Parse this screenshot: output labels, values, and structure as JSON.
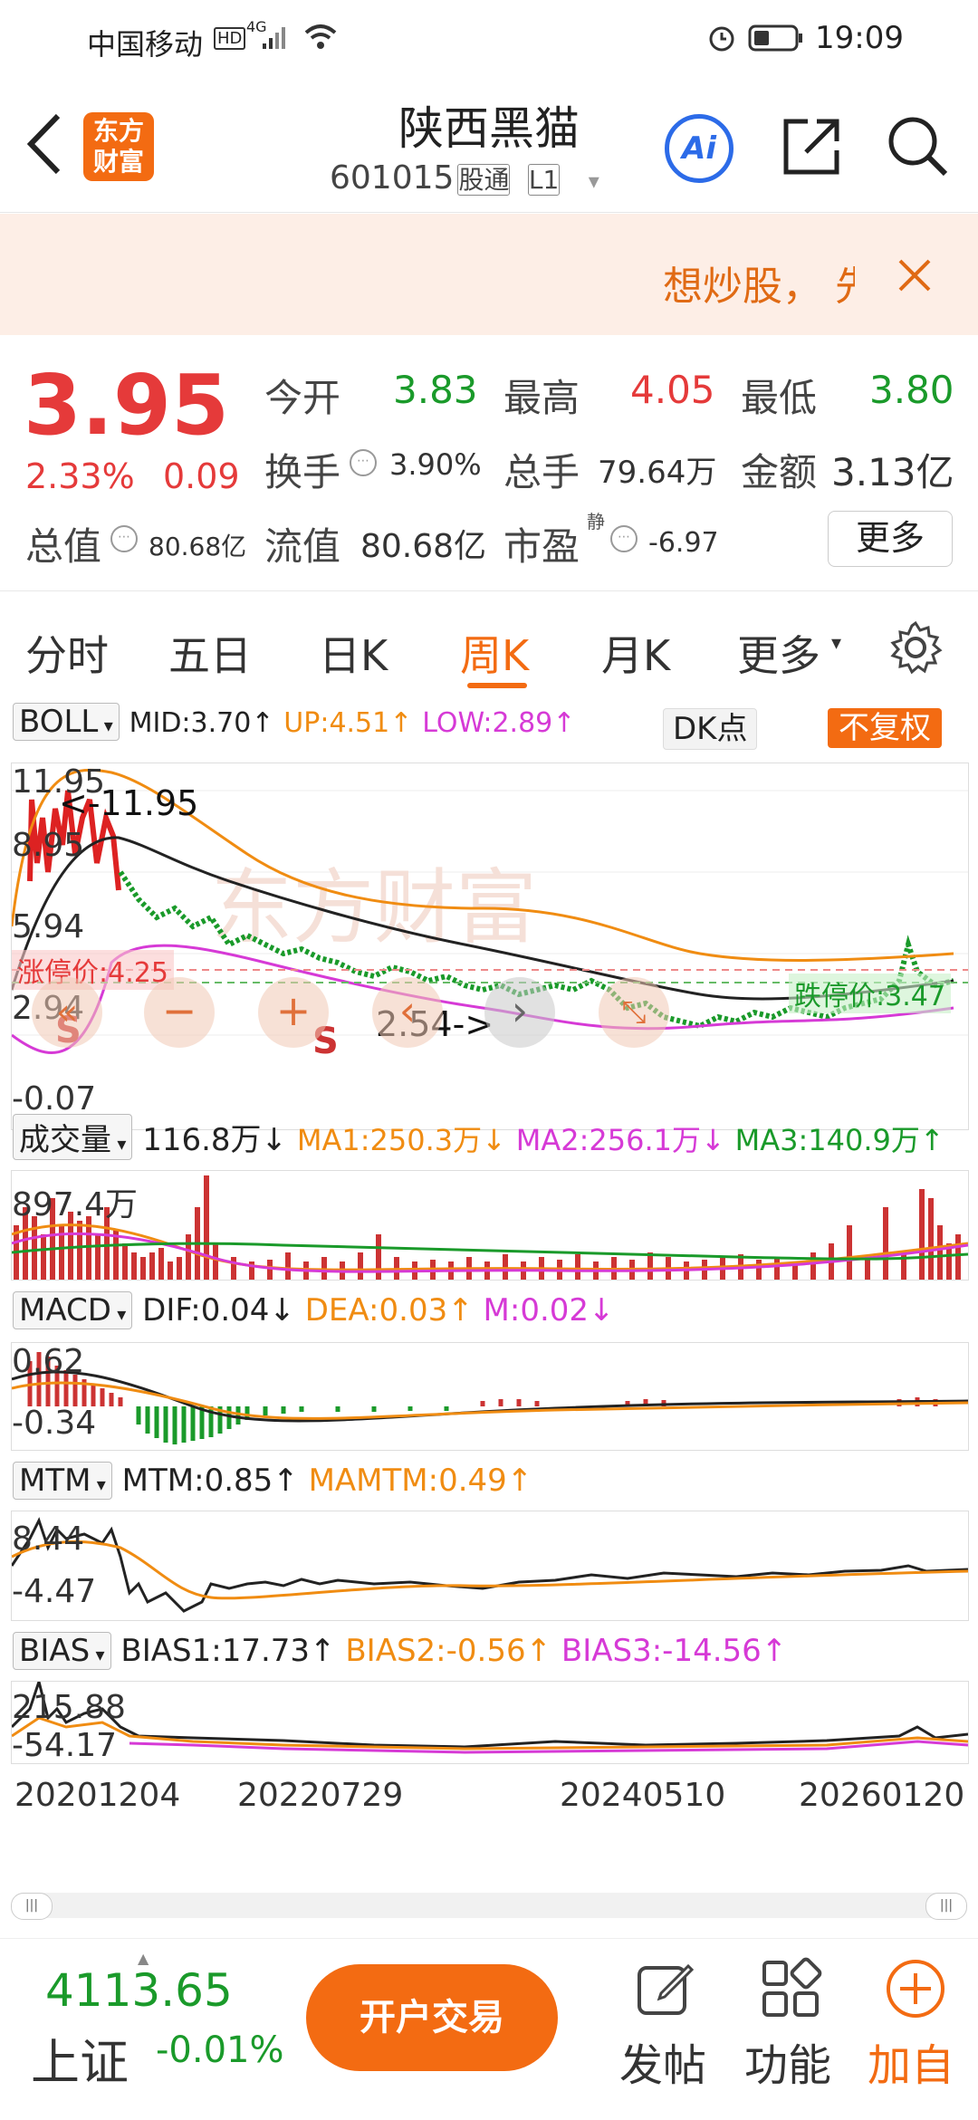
{
  "status_bar": {
    "carrier": "中国移动",
    "net": "HD",
    "signal": "4G",
    "time": "19:09"
  },
  "header": {
    "logo_line1": "东方",
    "logo_line2": "财富",
    "title": "陕西黑猫",
    "code": "601015",
    "badge1": "股通",
    "badge2": "L1",
    "ai_label": "Ai"
  },
  "banner": {
    "text": "想炒股，",
    "cut_char": "先"
  },
  "quote": {
    "price": "3.95",
    "change_pct": "2.33%",
    "change": "0.09",
    "open_label": "今开",
    "open": "3.83",
    "high_label": "最高",
    "high": "4.05",
    "low_label": "最低",
    "low": "3.80",
    "turnover_label": "换手",
    "turnover": "3.90%",
    "volume_label": "总手",
    "volume": "79.64万",
    "amount_label": "金额",
    "amount": "3.13亿",
    "mktcap_label": "总值",
    "mktcap": "80.68亿",
    "float_label": "流值",
    "float": "80.68亿",
    "pe_label": "市盈",
    "pe_sup": "静",
    "pe": "-6.97",
    "more": "更多"
  },
  "tabs": [
    "分时",
    "五日",
    "日K",
    "周K",
    "月K",
    "更多"
  ],
  "active_tab": 3,
  "boll": {
    "select": "BOLL",
    "mid": "MID:3.70↑",
    "up": "UP:4.51↑",
    "low": "LOW:2.89↑",
    "dk": "DK点",
    "fq": "不复权"
  },
  "kline_labels": {
    "y1": "11.95",
    "y2": "8.95",
    "y3": "5.94",
    "y4": "2.94",
    "y5": "-0.07",
    "hi_note": "<-11.95",
    "lo_note": "2.54->",
    "limit_up": "涨停价:4.25",
    "limit_down": "跌停价:3.47",
    "s1": "S",
    "s2": "S"
  },
  "volume": {
    "select": "成交量",
    "val": "116.8万↓",
    "ma1": "MA1:250.3万↓",
    "ma2": "MA2:256.1万↓",
    "ma3": "MA3:140.9万↑",
    "y_label": "897.4万"
  },
  "macd": {
    "select": "MACD",
    "dif": "DIF:0.04↓",
    "dea": "DEA:0.03↑",
    "m": "M:0.02↓",
    "y1": "0.62",
    "y2": "-0.34"
  },
  "mtm": {
    "select": "MTM",
    "mtm": "MTM:0.85↑",
    "mamtm": "MAMTM:0.49↑",
    "y1": "8.44",
    "y2": "-4.47"
  },
  "bias": {
    "select": "BIAS",
    "b1": "BIAS1:17.73↑",
    "b2": "BIAS2:-0.56↑",
    "b3": "BIAS3:-14.56↑",
    "y1": "215.88",
    "y2": "-54.17"
  },
  "dates": [
    "20201204",
    "20220729",
    "20240510",
    "20260120"
  ],
  "bottom": {
    "index_value": "4113.65",
    "index_name": "上证",
    "index_change": "-0.01%",
    "trade": "开户交易",
    "post": "发帖",
    "func": "功能",
    "watch": "加自"
  },
  "colors": {
    "red": "#e53a3a",
    "green": "#1a9a2a",
    "orange": "#f08c12",
    "magenta": "#d63ad6",
    "accent": "#f36b12"
  }
}
